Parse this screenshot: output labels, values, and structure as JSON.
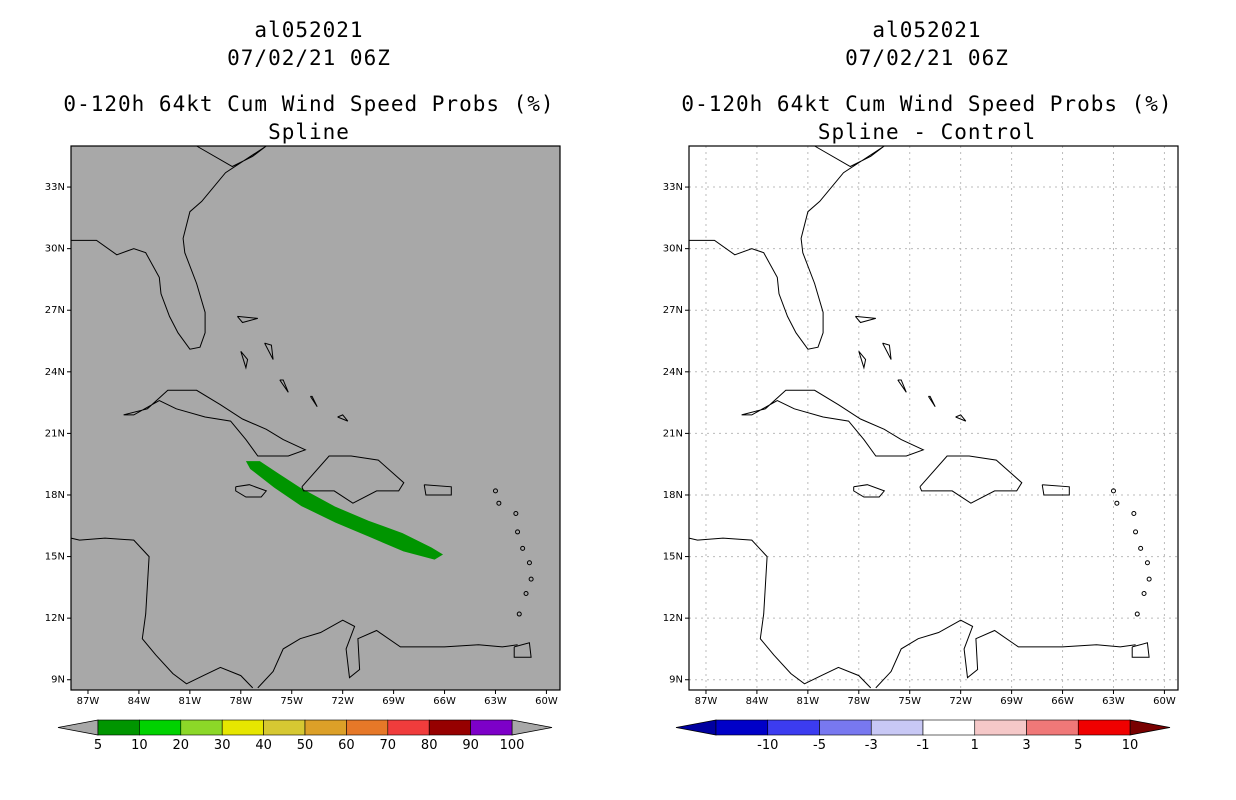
{
  "panels": [
    {
      "id": "spline",
      "storm_id": "al052021",
      "datetime": "07/02/21 06Z",
      "product": "0-120h 64kt Cum Wind Speed Probs (%)",
      "subtitle": "Spline",
      "background": "#a8a8a8",
      "lat_labels": [
        "33N",
        "30N",
        "27N",
        "24N",
        "21N",
        "18N",
        "15N",
        "12N",
        "9N"
      ],
      "lon_labels": [
        "87W",
        "84W",
        "81W",
        "78W",
        "75W",
        "72W",
        "69W",
        "66W",
        "63W",
        "60W"
      ],
      "colorbar": {
        "colors": [
          "#009500",
          "#00d200",
          "#8cd828",
          "#e6e600",
          "#d6c832",
          "#dca028",
          "#e67828",
          "#f03c3c",
          "#960000",
          "#7d00c8"
        ],
        "labels": [
          "5",
          "10",
          "20",
          "30",
          "40",
          "50",
          "60",
          "70",
          "80",
          "90",
          "100"
        ],
        "end_colors": [
          "#a8a8a8",
          "#a8a8a8"
        ]
      },
      "swath": {
        "value_range": "5-10",
        "color": "#009500"
      }
    },
    {
      "id": "spline-control",
      "storm_id": "al052021",
      "datetime": "07/02/21 06Z",
      "product": "0-120h 64kt Cum Wind Speed Probs (%)",
      "subtitle": "Spline - Control",
      "background": "#ffffff",
      "lat_labels": [
        "33N",
        "30N",
        "27N",
        "24N",
        "21N",
        "18N",
        "15N",
        "12N",
        "9N"
      ],
      "lon_labels": [
        "87W",
        "84W",
        "81W",
        "78W",
        "75W",
        "72W",
        "69W",
        "66W",
        "63W",
        "60W"
      ],
      "colorbar": {
        "colors": [
          "#0000c8",
          "#3c3cf0",
          "#7878f0",
          "#c8c8f5",
          "#ffffff",
          "#f5c8c8",
          "#f07878",
          "#f00000"
        ],
        "labels": [
          "-10",
          "-5",
          "-3",
          "-1",
          "1",
          "3",
          "5",
          "10"
        ],
        "end_colors": [
          "#0000a0",
          "#780000"
        ]
      }
    }
  ]
}
